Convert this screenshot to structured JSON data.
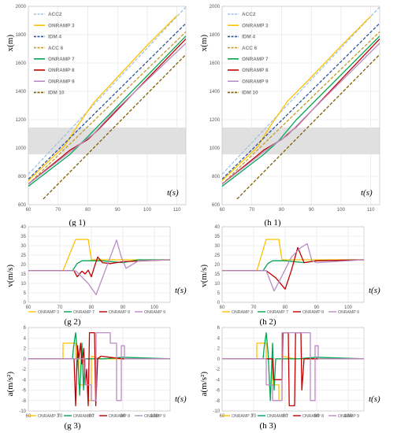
{
  "chart_data": [
    {
      "id": "g1",
      "type": "line",
      "caption": "(g 1)",
      "xlabel": "t(s)",
      "ylabel": "x(m)",
      "xlim": [
        60,
        113
      ],
      "ylim": [
        600,
        2000
      ],
      "xticks": [
        60,
        70,
        80,
        90,
        100,
        110
      ],
      "yticks": [
        600,
        800,
        1000,
        1200,
        1400,
        1600,
        1800,
        2000
      ],
      "band": [
        955,
        1145
      ],
      "legend": "top-left",
      "grid": true,
      "series": [
        {
          "name": "ACC2",
          "color": "#9dc3e6",
          "dash": "dash",
          "x": [
            60,
            113
          ],
          "y": [
            815,
            1995
          ]
        },
        {
          "name": "ONRAMP 3",
          "color": "#ffc000",
          "dash": "solid",
          "x": [
            60,
            72,
            76,
            82,
            90,
            100,
            110
          ],
          "y": [
            770,
            1010,
            1140,
            1320,
            1500,
            1725,
            1935
          ]
        },
        {
          "name": "IDM 4",
          "color": "#2f5597",
          "dash": "dash",
          "x": [
            60,
            113
          ],
          "y": [
            780,
            1880
          ]
        },
        {
          "name": "ACC 6",
          "color": "#c49a2a",
          "dash": "dash",
          "x": [
            60,
            113
          ],
          "y": [
            745,
            1820
          ]
        },
        {
          "name": "ONRAMP 7",
          "color": "#00a651",
          "dash": "solid",
          "x": [
            60,
            74,
            80,
            86,
            113
          ],
          "y": [
            730,
            955,
            1080,
            1210,
            1790
          ]
        },
        {
          "name": "ONRAMP 8",
          "color": "#c00000",
          "dash": "solid",
          "x": [
            60,
            74,
            80,
            84,
            113
          ],
          "y": [
            745,
            985,
            1060,
            1140,
            1770
          ]
        },
        {
          "name": "ONRAMP 9",
          "color": "#b98cc6",
          "dash": "solid",
          "x": [
            60,
            76,
            82,
            88,
            113
          ],
          "y": [
            745,
            1005,
            1100,
            1240,
            1740
          ]
        },
        {
          "name": "IDM 10",
          "color": "#806000",
          "dash": "dash",
          "x": [
            65,
            113
          ],
          "y": [
            640,
            1660
          ]
        }
      ]
    },
    {
      "id": "h1",
      "type": "line",
      "caption": "(h 1)",
      "xlabel": "t(s)",
      "ylabel": "x(m)",
      "xlim": [
        60,
        113
      ],
      "ylim": [
        600,
        2000
      ],
      "xticks": [
        60,
        70,
        80,
        90,
        100,
        110
      ],
      "yticks": [
        600,
        800,
        1000,
        1200,
        1400,
        1600,
        1800,
        2000
      ],
      "band": [
        955,
        1145
      ],
      "legend": "top-left",
      "grid": true,
      "series": [
        {
          "name": "ACC2",
          "color": "#9dc3e6",
          "dash": "dash",
          "x": [
            60,
            113
          ],
          "y": [
            815,
            1995
          ]
        },
        {
          "name": "ONRAMP 3",
          "color": "#ffc000",
          "dash": "solid",
          "x": [
            60,
            72,
            76,
            82,
            90,
            100,
            110
          ],
          "y": [
            770,
            1010,
            1150,
            1330,
            1500,
            1720,
            1930
          ]
        },
        {
          "name": "IDM 4",
          "color": "#2f5597",
          "dash": "dash",
          "x": [
            60,
            113
          ],
          "y": [
            780,
            1880
          ]
        },
        {
          "name": "ACC 6",
          "color": "#c49a2a",
          "dash": "dash",
          "x": [
            60,
            113
          ],
          "y": [
            745,
            1820
          ]
        },
        {
          "name": "ONRAMP 7",
          "color": "#00a651",
          "dash": "solid",
          "x": [
            60,
            74,
            79,
            85,
            113
          ],
          "y": [
            730,
            955,
            1050,
            1200,
            1790
          ]
        },
        {
          "name": "ONRAMP 8",
          "color": "#c00000",
          "dash": "solid",
          "x": [
            60,
            74,
            80,
            85,
            113
          ],
          "y": [
            745,
            985,
            1060,
            1150,
            1770
          ]
        },
        {
          "name": "ONRAMP 9",
          "color": "#b98cc6",
          "dash": "solid",
          "x": [
            60,
            76,
            82,
            88,
            113
          ],
          "y": [
            745,
            1005,
            1090,
            1220,
            1740
          ]
        },
        {
          "name": "IDM 10",
          "color": "#806000",
          "dash": "dash",
          "x": [
            65,
            113
          ],
          "y": [
            640,
            1660
          ]
        }
      ]
    },
    {
      "id": "g2",
      "type": "line",
      "caption": "(g 2)",
      "xlabel": "t(s)",
      "ylabel": "v(m/s)",
      "xlim": [
        60,
        105
      ],
      "ylim": [
        0,
        40
      ],
      "xticks": [
        60,
        70,
        80,
        90,
        100
      ],
      "yticks": [
        0,
        5,
        10,
        15,
        20,
        25,
        30,
        35,
        40
      ],
      "legend": "bottom",
      "grid": true,
      "series": [
        {
          "name": "ONRAMP 3",
          "color": "#ffc000",
          "x": [
            60,
            71,
            75,
            79,
            80,
            105
          ],
          "y": [
            16.7,
            16.7,
            33.3,
            33.3,
            22.5,
            22.5
          ]
        },
        {
          "name": "ONRAMP 7",
          "color": "#00a651",
          "x": [
            60,
            74,
            75.5,
            77,
            83,
            90,
            95,
            105
          ],
          "y": [
            16.7,
            16.7,
            20.5,
            22,
            22,
            21,
            22.5,
            22.5
          ]
        },
        {
          "name": "ONRAMP 8",
          "color": "#c00000",
          "x": [
            60,
            74.5,
            75.5,
            77,
            78,
            79,
            80,
            81,
            82,
            83.5,
            86,
            90,
            105
          ],
          "y": [
            16.7,
            16.7,
            13.5,
            16.5,
            15,
            17,
            13.5,
            19,
            24,
            21,
            20.5,
            21.5,
            22.5
          ]
        },
        {
          "name": "ONRAMP 9",
          "color": "#b98cc6",
          "x": [
            60,
            75,
            79,
            81.5,
            86,
            88,
            89.5,
            91,
            95,
            105
          ],
          "y": [
            16.7,
            16.7,
            10,
            4,
            24,
            33,
            24,
            18,
            22,
            22.5
          ]
        }
      ]
    },
    {
      "id": "h2",
      "type": "line",
      "caption": "(h 2)",
      "xlabel": "t(s)",
      "ylabel": "v(m/s)",
      "xlim": [
        60,
        105
      ],
      "ylim": [
        0,
        40
      ],
      "xticks": [
        60,
        70,
        80,
        90,
        100
      ],
      "yticks": [
        0,
        5,
        10,
        15,
        20,
        25,
        30,
        35,
        40
      ],
      "legend": "bottom",
      "grid": true,
      "series": [
        {
          "name": "ONRAMP 3",
          "color": "#ffc000",
          "x": [
            60,
            71,
            74,
            78,
            79,
            105
          ],
          "y": [
            16.7,
            16.7,
            33.3,
            33.3,
            22.5,
            22.5
          ]
        },
        {
          "name": "ONRAMP 7",
          "color": "#00a651",
          "x": [
            60,
            73,
            74.5,
            76,
            80,
            86,
            90,
            105
          ],
          "y": [
            16.7,
            16.7,
            20.5,
            22,
            22,
            21,
            22,
            22.5
          ]
        },
        {
          "name": "ONRAMP 8",
          "color": "#c00000",
          "x": [
            60,
            74,
            77,
            80,
            82,
            84,
            86,
            90,
            105
          ],
          "y": [
            16.7,
            16.7,
            13,
            7,
            17,
            29,
            21,
            22,
            22.5
          ]
        },
        {
          "name": "ONRAMP 9",
          "color": "#b98cc6",
          "x": [
            60,
            74,
            76.5,
            79,
            82,
            85,
            87,
            88.5,
            90,
            105
          ],
          "y": [
            16.7,
            16.7,
            6,
            14,
            24,
            29,
            31,
            22,
            21,
            22.5
          ]
        }
      ]
    },
    {
      "id": "g3",
      "type": "line",
      "caption": "(g 3)",
      "xlabel": "t(s)",
      "ylabel": "a(m/s²)",
      "xlim": [
        60,
        105
      ],
      "ylim": [
        -10,
        6
      ],
      "xticks": [
        60,
        70,
        80,
        90,
        100
      ],
      "yticks": [
        -10,
        -8,
        -6,
        -4,
        -2,
        0,
        2,
        4,
        6
      ],
      "legend": "bottom",
      "grid": true,
      "series": [
        {
          "name": "ONRAMP 3",
          "color": "#ffc000",
          "x": [
            60,
            71,
            71,
            75,
            75,
            76,
            76,
            79,
            79,
            80,
            80,
            83,
            90,
            105
          ],
          "y": [
            0,
            0,
            3,
            3,
            0,
            0,
            -5,
            -5,
            -8,
            -8,
            0.5,
            0,
            0,
            0
          ]
        },
        {
          "name": "ONRAMP 7",
          "color": "#00a651",
          "x": [
            60,
            74,
            74.3,
            75,
            75.6,
            76.3,
            77,
            77.5,
            78,
            84,
            90,
            105
          ],
          "y": [
            0,
            0,
            2,
            5,
            1,
            -7,
            3,
            -6,
            0,
            0,
            0.3,
            0
          ]
        },
        {
          "name": "ONRAMP 8",
          "color": "#c00000",
          "x": [
            60,
            74.5,
            75,
            75.6,
            76,
            76.6,
            77,
            77.6,
            78,
            78.5,
            79,
            79.4,
            81,
            81.4,
            82,
            83,
            90,
            105
          ],
          "y": [
            0,
            0,
            -9,
            2.5,
            0,
            3,
            -1,
            2,
            -5,
            -2,
            -9,
            5,
            5,
            -9,
            0,
            0.5,
            0,
            0
          ]
        },
        {
          "name": "ONRAMP 9",
          "color": "#b98cc6",
          "x": [
            60,
            78,
            78,
            80,
            80,
            81.5,
            81.5,
            86,
            86,
            88,
            88,
            89.5,
            89.5,
            90.5,
            90.5,
            92,
            105
          ],
          "y": [
            0,
            0,
            -5,
            -5,
            -8,
            -8,
            5,
            5,
            3,
            3,
            -8,
            -8,
            2.5,
            2.5,
            0,
            0,
            0
          ]
        }
      ]
    },
    {
      "id": "h3",
      "type": "line",
      "caption": "(h 3)",
      "xlabel": "t(s)",
      "ylabel": "a(m/s²)",
      "xlim": [
        60,
        105
      ],
      "ylim": [
        -10,
        6
      ],
      "xticks": [
        60,
        70,
        80,
        90,
        100
      ],
      "yticks": [
        -10,
        -8,
        -6,
        -4,
        -2,
        0,
        2,
        4,
        6
      ],
      "legend": "bottom",
      "grid": true,
      "series": [
        {
          "name": "ONRAMP 3",
          "color": "#ffc000",
          "x": [
            60,
            71,
            71,
            74,
            74,
            76,
            76,
            78,
            78,
            79,
            79,
            83,
            90,
            105
          ],
          "y": [
            0,
            0,
            3,
            3,
            0,
            0,
            -5,
            -5,
            -8,
            -8,
            0.5,
            0,
            0,
            0
          ]
        },
        {
          "name": "ONRAMP 7",
          "color": "#00a651",
          "x": [
            60,
            73,
            73.3,
            74,
            74.6,
            75.3,
            76,
            76.5,
            77,
            84,
            90,
            105
          ],
          "y": [
            0,
            0,
            2,
            5,
            1,
            -8,
            3,
            -6,
            0,
            0,
            0.3,
            0
          ]
        },
        {
          "name": "ONRAMP 8",
          "color": "#c00000",
          "x": [
            60,
            74,
            76,
            76.3,
            79,
            79.3,
            81,
            81.3,
            83,
            83.3,
            85,
            85.3,
            86,
            90,
            105
          ],
          "y": [
            0,
            0,
            0,
            -4,
            -4,
            5,
            5,
            -9,
            -9,
            5,
            5,
            -6,
            0,
            0,
            0
          ]
        },
        {
          "name": "ONRAMP 9",
          "color": "#b98cc6",
          "x": [
            60,
            74,
            74,
            76,
            76,
            79,
            79,
            88,
            88,
            89.5,
            89.5,
            90.5,
            90.5,
            105
          ],
          "y": [
            0,
            0,
            -5,
            -5,
            -8,
            -8,
            5,
            5,
            -8,
            -8,
            2.5,
            2.5,
            0,
            0
          ]
        }
      ]
    }
  ]
}
